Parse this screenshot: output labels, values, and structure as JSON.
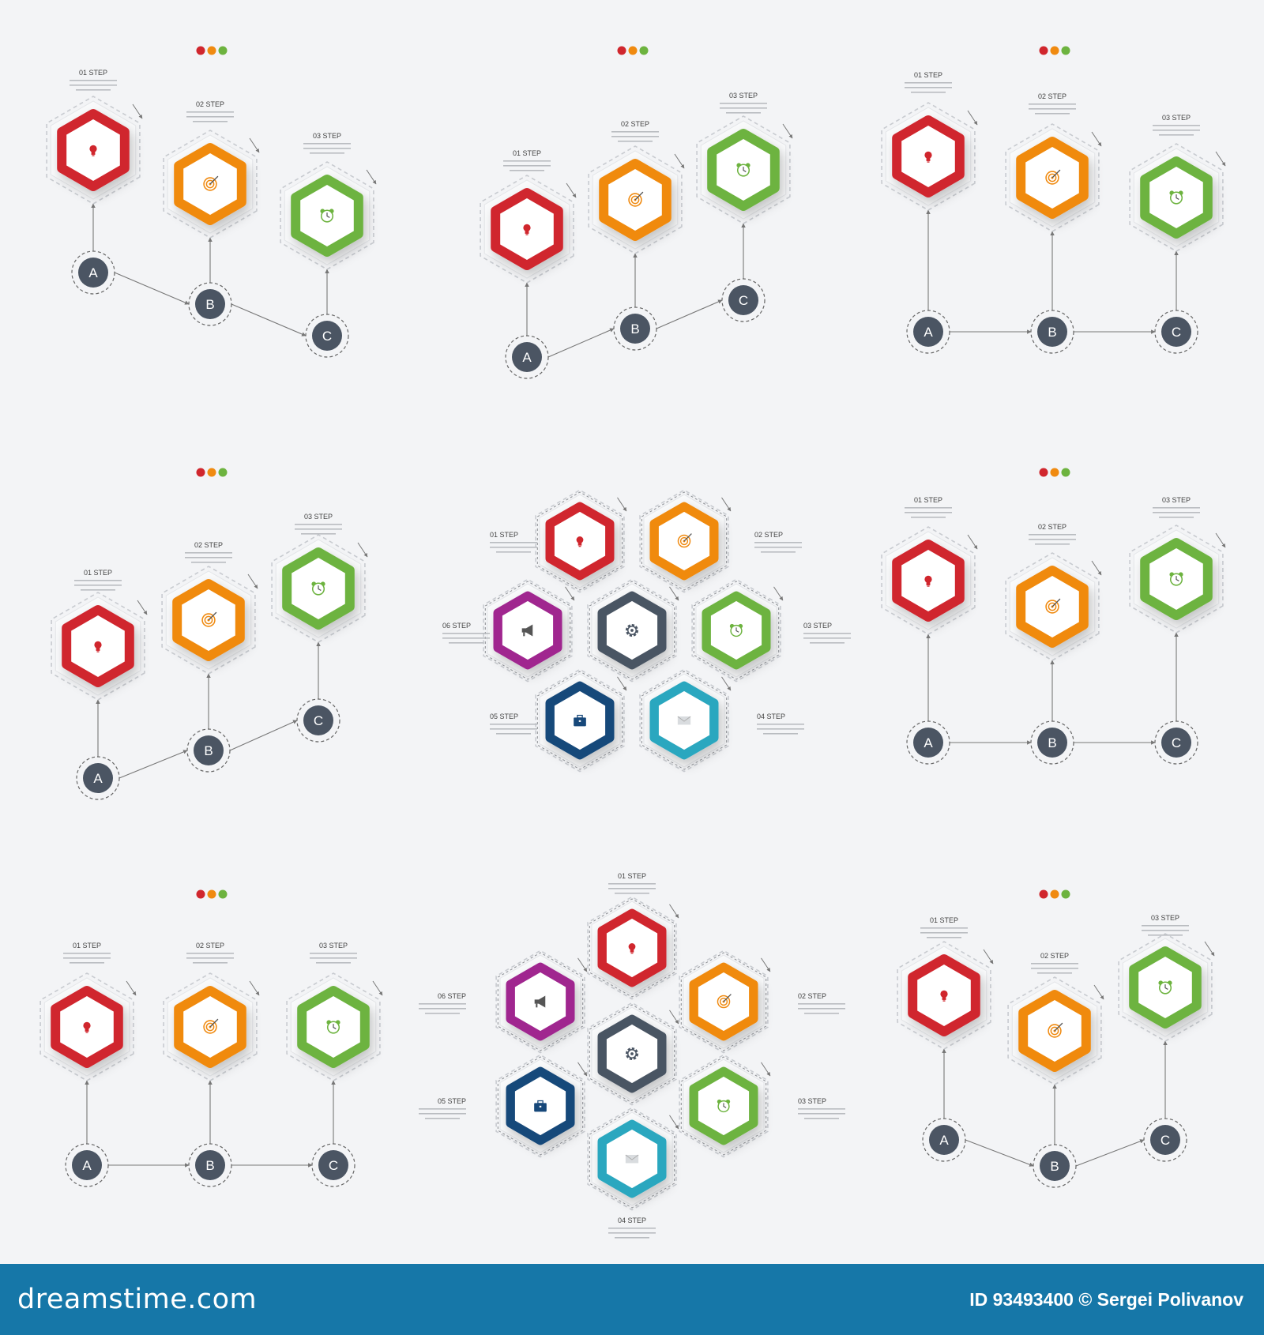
{
  "step_labels": [
    "01 STEP",
    "02 STEP",
    "03 STEP",
    "04 STEP",
    "05 STEP",
    "06 STEP"
  ],
  "node_letters": [
    "A",
    "B",
    "C"
  ],
  "colors": {
    "red": "#d0262d",
    "orange": "#f08a10",
    "green": "#6db33f",
    "purple": "#a0278f",
    "navy": "#17487a",
    "teal": "#2aa7bf",
    "dark": "#4a5563",
    "node": "#4b5563",
    "line": "#777777",
    "ring": "#c8cbd0",
    "dots": [
      "#d0262d",
      "#f08a10",
      "#6db33f"
    ]
  },
  "icons": {
    "red": "lightbulb-icon",
    "orange": "target-icon",
    "green": "alarm-clock-icon",
    "purple": "megaphone-icon",
    "navy": "briefcase-icon",
    "teal": "envelope-icon",
    "dark": "gear-icon"
  },
  "footer": {
    "logo": "dreamstime.com",
    "credit": "ID 93493400 © Sergei Polivanov"
  }
}
